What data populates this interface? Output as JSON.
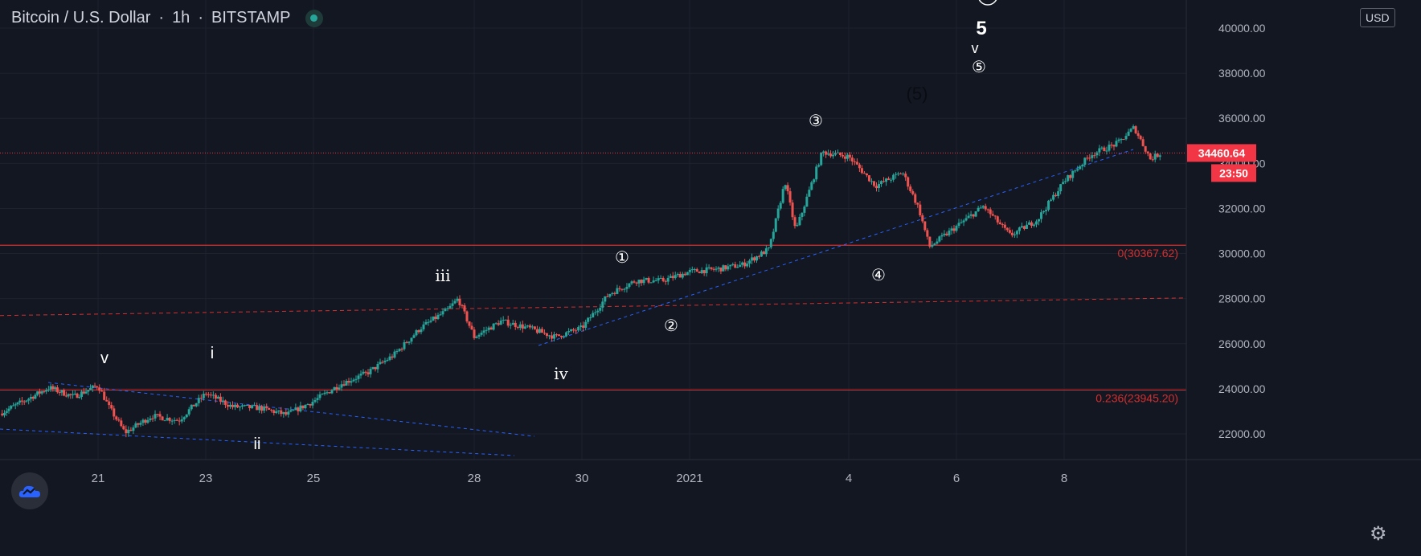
{
  "header": {
    "symbol": "Bitcoin / U.S. Dollar",
    "interval": "1h",
    "exchange": "BITSTAMP",
    "separator": "·",
    "status_icon": "market-open-dot-icon"
  },
  "currency_label": "USD",
  "settings_icon": "gear-icon",
  "logo_icon": "tradingview-cloud-icon",
  "colors": {
    "background": "#131722",
    "grid": "#1e222d",
    "up": "#26a69a",
    "down": "#ef5350",
    "fib_line": "#d32f2f",
    "trend_line": "#2962ff",
    "price_tag": "#f23645"
  },
  "chart_data": {
    "type": "candlestick",
    "symbol": "BTCUSD",
    "interval": "1h",
    "y_range": [
      20700,
      41300
    ],
    "x_ticks": [
      "21",
      "23",
      "25",
      "28",
      "30",
      "2021",
      "4",
      "6",
      "8"
    ],
    "y_ticks": [
      "22000.00",
      "24000.00",
      "26000.00",
      "28000.00",
      "30000.00",
      "32000.00",
      "34000.00",
      "36000.00",
      "38000.00",
      "40000.00"
    ],
    "last_price": "34460.64",
    "countdown": "23:50",
    "price_path": [
      [
        "19",
        22900
      ],
      [
        "20",
        24050
      ],
      [
        "20.5",
        23650
      ],
      [
        "21",
        24150
      ],
      [
        "21.2",
        23200
      ],
      [
        "21.5",
        22050
      ],
      [
        "22",
        22800
      ],
      [
        "22.5",
        22600
      ],
      [
        "23",
        23800
      ],
      [
        "23.5",
        23200
      ],
      [
        "24",
        23150
      ],
      [
        "24.5",
        22850
      ],
      [
        "25",
        23450
      ],
      [
        "25.5",
        24200
      ],
      [
        "26",
        24700
      ],
      [
        "26.5",
        25500
      ],
      [
        "27",
        26700
      ],
      [
        "27.5",
        27500
      ],
      [
        "27.7",
        28000
      ],
      [
        "28",
        26300
      ],
      [
        "28.5",
        27000
      ],
      [
        "29",
        26700
      ],
      [
        "29.5",
        26300
      ],
      [
        "30",
        26700
      ],
      [
        "30.5",
        28200
      ],
      [
        "31",
        28800
      ],
      [
        "31.5",
        28800
      ],
      [
        "32",
        29200
      ],
      [
        "32.5",
        29300
      ],
      [
        "33",
        29500
      ],
      [
        "33.5",
        30200
      ],
      [
        "33.8",
        33200
      ],
      [
        "34",
        31000
      ],
      [
        "34.5",
        34500
      ],
      [
        "35",
        34300
      ],
      [
        "35.5",
        33000
      ],
      [
        "36",
        33600
      ],
      [
        "36.3",
        32000
      ],
      [
        "36.5",
        30300
      ],
      [
        "37",
        31200
      ],
      [
        "37.5",
        32100
      ],
      [
        "38",
        30800
      ],
      [
        "38.5",
        31500
      ],
      [
        "39",
        33200
      ],
      [
        "39.5",
        34400
      ],
      [
        "40",
        34900
      ],
      [
        "40.3",
        35600
      ],
      [
        "40.6",
        34200
      ],
      [
        "40.8",
        34460
      ]
    ],
    "fib_levels": [
      {
        "ratio": "0",
        "price": 30367.62,
        "label": "0(30367.62)"
      },
      {
        "ratio": "0.236",
        "price": 23945.2,
        "label": "0.236(23945.20)"
      }
    ],
    "wave_labels": [
      "v",
      "i",
      "ii",
      "iii",
      "iv",
      "①",
      "②",
      "③",
      "④",
      "(5)",
      "5",
      "v",
      "⑤"
    ]
  }
}
